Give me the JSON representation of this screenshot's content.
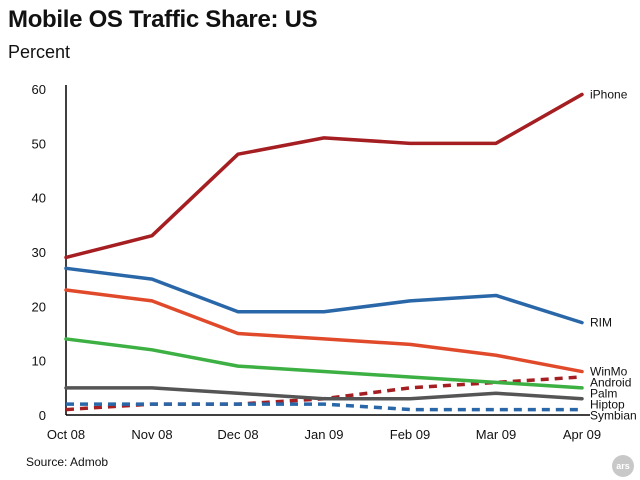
{
  "title": "Mobile OS Traffic Share: US",
  "subtitle": "Percent",
  "source": "Source: Admob",
  "watermark": "ars",
  "chart_data": {
    "type": "line",
    "title": "Mobile OS Traffic Share: US",
    "ylabel": "Percent",
    "xlabel": "",
    "categories": [
      "Oct 08",
      "Nov 08",
      "Dec 08",
      "Jan 09",
      "Feb 09",
      "Mar 09",
      "Apr 09"
    ],
    "ylim": [
      0,
      60
    ],
    "yticks": [
      0,
      10,
      20,
      30,
      40,
      50,
      60
    ],
    "grid": false,
    "legend": "inline labels at right end of lines",
    "series": [
      {
        "name": "iPhone",
        "color": "#a51e22",
        "dashed": false,
        "values": [
          29,
          33,
          48,
          51,
          50,
          50,
          59
        ]
      },
      {
        "name": "RIM",
        "color": "#2a67a8",
        "dashed": false,
        "values": [
          27,
          25,
          19,
          19,
          21,
          22,
          17
        ]
      },
      {
        "name": "WinMo",
        "color": "#e04a2b",
        "dashed": false,
        "values": [
          23,
          21,
          15,
          14,
          13,
          11,
          8
        ]
      },
      {
        "name": "Android",
        "color": "#a51e22",
        "dashed": true,
        "values": [
          1,
          2,
          2,
          3,
          5,
          6,
          7
        ]
      },
      {
        "name": "Palm",
        "color": "#3cb043",
        "dashed": false,
        "values": [
          14,
          12,
          9,
          8,
          7,
          6,
          5
        ]
      },
      {
        "name": "Hiptop",
        "color": "#555555",
        "dashed": false,
        "values": [
          5,
          5,
          4,
          3,
          3,
          4,
          3
        ]
      },
      {
        "name": "Symbian",
        "color": "#2a67a8",
        "dashed": true,
        "values": [
          2,
          2,
          2,
          2,
          1,
          1,
          1
        ]
      }
    ]
  }
}
